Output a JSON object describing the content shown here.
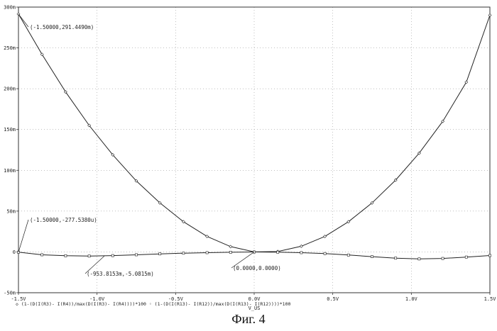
{
  "figure_caption": "Фиг. 4",
  "chart_data": {
    "type": "line",
    "xlabel": "V_US",
    "ylabel": "",
    "xlim": [
      -1.5,
      1.5
    ],
    "ylim": [
      -50,
      300
    ],
    "grid": true,
    "x_ticks": [
      {
        "value": -1.5,
        "label": "-1.5V"
      },
      {
        "value": -1.0,
        "label": "-1.0V"
      },
      {
        "value": -0.5,
        "label": "-0.5V"
      },
      {
        "value": 0.0,
        "label": "0.0V"
      },
      {
        "value": 0.5,
        "label": "0.5V"
      },
      {
        "value": 1.0,
        "label": "1.0V"
      },
      {
        "value": 1.5,
        "label": "1.5V"
      }
    ],
    "y_ticks": [
      {
        "value": 300,
        "label": "300m"
      },
      {
        "value": 250,
        "label": "250m"
      },
      {
        "value": 200,
        "label": "200m"
      },
      {
        "value": 150,
        "label": "150m"
      },
      {
        "value": 100,
        "label": "100m"
      },
      {
        "value": 50,
        "label": "50m"
      },
      {
        "value": 0,
        "label": "0"
      },
      {
        "value": -50,
        "label": "-50m"
      }
    ],
    "series": [
      {
        "marker": "diamond",
        "x": [
          -1.5,
          -1.35,
          -1.2,
          -1.05,
          -0.9,
          -0.75,
          -0.6,
          -0.45,
          -0.3,
          -0.15,
          0.0,
          0.15,
          0.3,
          0.45,
          0.6,
          0.75,
          0.9,
          1.05,
          1.2,
          1.35,
          1.5
        ],
        "y": [
          291.449,
          242,
          196,
          155,
          119,
          87,
          60,
          37,
          19,
          6.5,
          0,
          0.5,
          7,
          19,
          37,
          60,
          88,
          121,
          160,
          208,
          290
        ]
      },
      {
        "marker": "square",
        "x": [
          -1.5,
          -1.35,
          -1.2,
          -1.05,
          -0.9,
          -0.75,
          -0.6,
          -0.45,
          -0.3,
          -0.15,
          0.0,
          0.15,
          0.3,
          0.45,
          0.6,
          0.75,
          0.9,
          1.05,
          1.2,
          1.35,
          1.5
        ],
        "y": [
          -0.278,
          -3.5,
          -4.7,
          -5.08,
          -4.5,
          -3.5,
          -2.4,
          -1.5,
          -0.9,
          -0.4,
          -0.1,
          -0.3,
          -0.9,
          -2.0,
          -3.8,
          -5.8,
          -7.6,
          -8.6,
          -8.0,
          -6.3,
          -4.4
        ]
      }
    ],
    "annotations": [
      {
        "text": "(-1.50000,291.4490m)",
        "x": -1.5,
        "y": 291.449
      },
      {
        "text": "(-1.50000,-277.5380u)",
        "x": -1.5,
        "y": -0.278
      },
      {
        "text": "(-953.8153m,-5.0815m)",
        "x": -0.9538,
        "y": -5.0815
      },
      {
        "text": "(0.0000,0.0000)",
        "x": 0.0,
        "y": 0.0
      }
    ],
    "expression": "◇ (1-(D(I(R3)- I(R4))/max(D(I(R3)- I(R4))))*100 ◦ (1-(D(I(R13)- I(R12))/max(D(I(R13)- I(R12))))*100"
  }
}
